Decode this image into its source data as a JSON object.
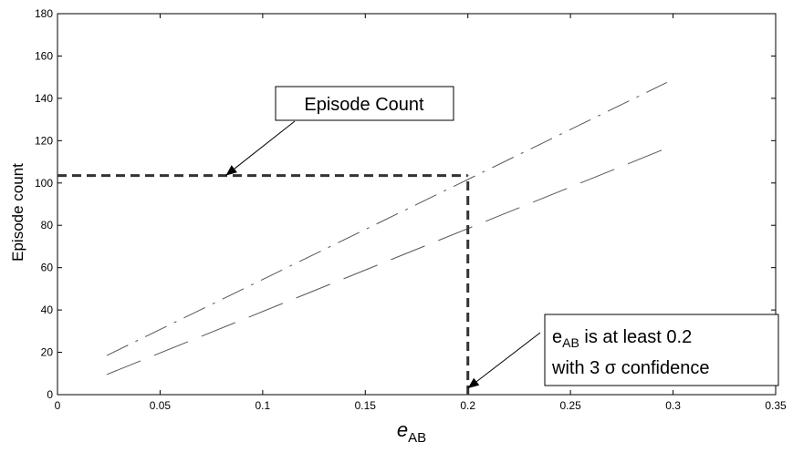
{
  "chart_data": {
    "type": "line",
    "title": "",
    "xlabel": {
      "main": "e",
      "sub": "AB"
    },
    "ylabel": "Episode count",
    "xlim": [
      0,
      0.35
    ],
    "ylim": [
      0,
      180
    ],
    "xticks": [
      0,
      0.05,
      0.1,
      0.15,
      0.2,
      0.25,
      0.3,
      0.35
    ],
    "xtick_labels": [
      "0",
      "0.05",
      "0.1",
      "0.15",
      "0.2",
      "0.25",
      "0.3",
      "0.35"
    ],
    "yticks": [
      0,
      20,
      40,
      60,
      80,
      100,
      120,
      140,
      160,
      180
    ],
    "ytick_labels": [
      "0",
      "20",
      "40",
      "60",
      "80",
      "100",
      "120",
      "140",
      "160",
      "180"
    ],
    "grid": false,
    "series": [
      {
        "style": "dash-dot",
        "color": "#555555",
        "x": [
          0.024,
          0.297
        ],
        "y": [
          18.5,
          147.5
        ]
      },
      {
        "style": "long-dash",
        "color": "#555555",
        "x": [
          0.024,
          0.297
        ],
        "y": [
          9.5,
          116.5
        ]
      }
    ],
    "reference_lines": {
      "color": "#333333",
      "horizontal": {
        "y": 103.5,
        "x_from": 0,
        "x_to": 0.2
      },
      "vertical": {
        "x": 0.2,
        "y_from": 0,
        "y_to": 103.5
      }
    },
    "annotations": [
      {
        "name": "episode-count",
        "lines": [
          "Episode Count"
        ],
        "arrow_to": {
          "x": 0.082,
          "y": 103.5
        }
      },
      {
        "name": "confidence",
        "lines": [
          {
            "main": "e",
            "sub": "AB",
            "rest": " is at least 0.2"
          },
          "with 3 σ confidence"
        ],
        "arrow_to": {
          "x": 0.2,
          "y": 3
        }
      }
    ]
  }
}
